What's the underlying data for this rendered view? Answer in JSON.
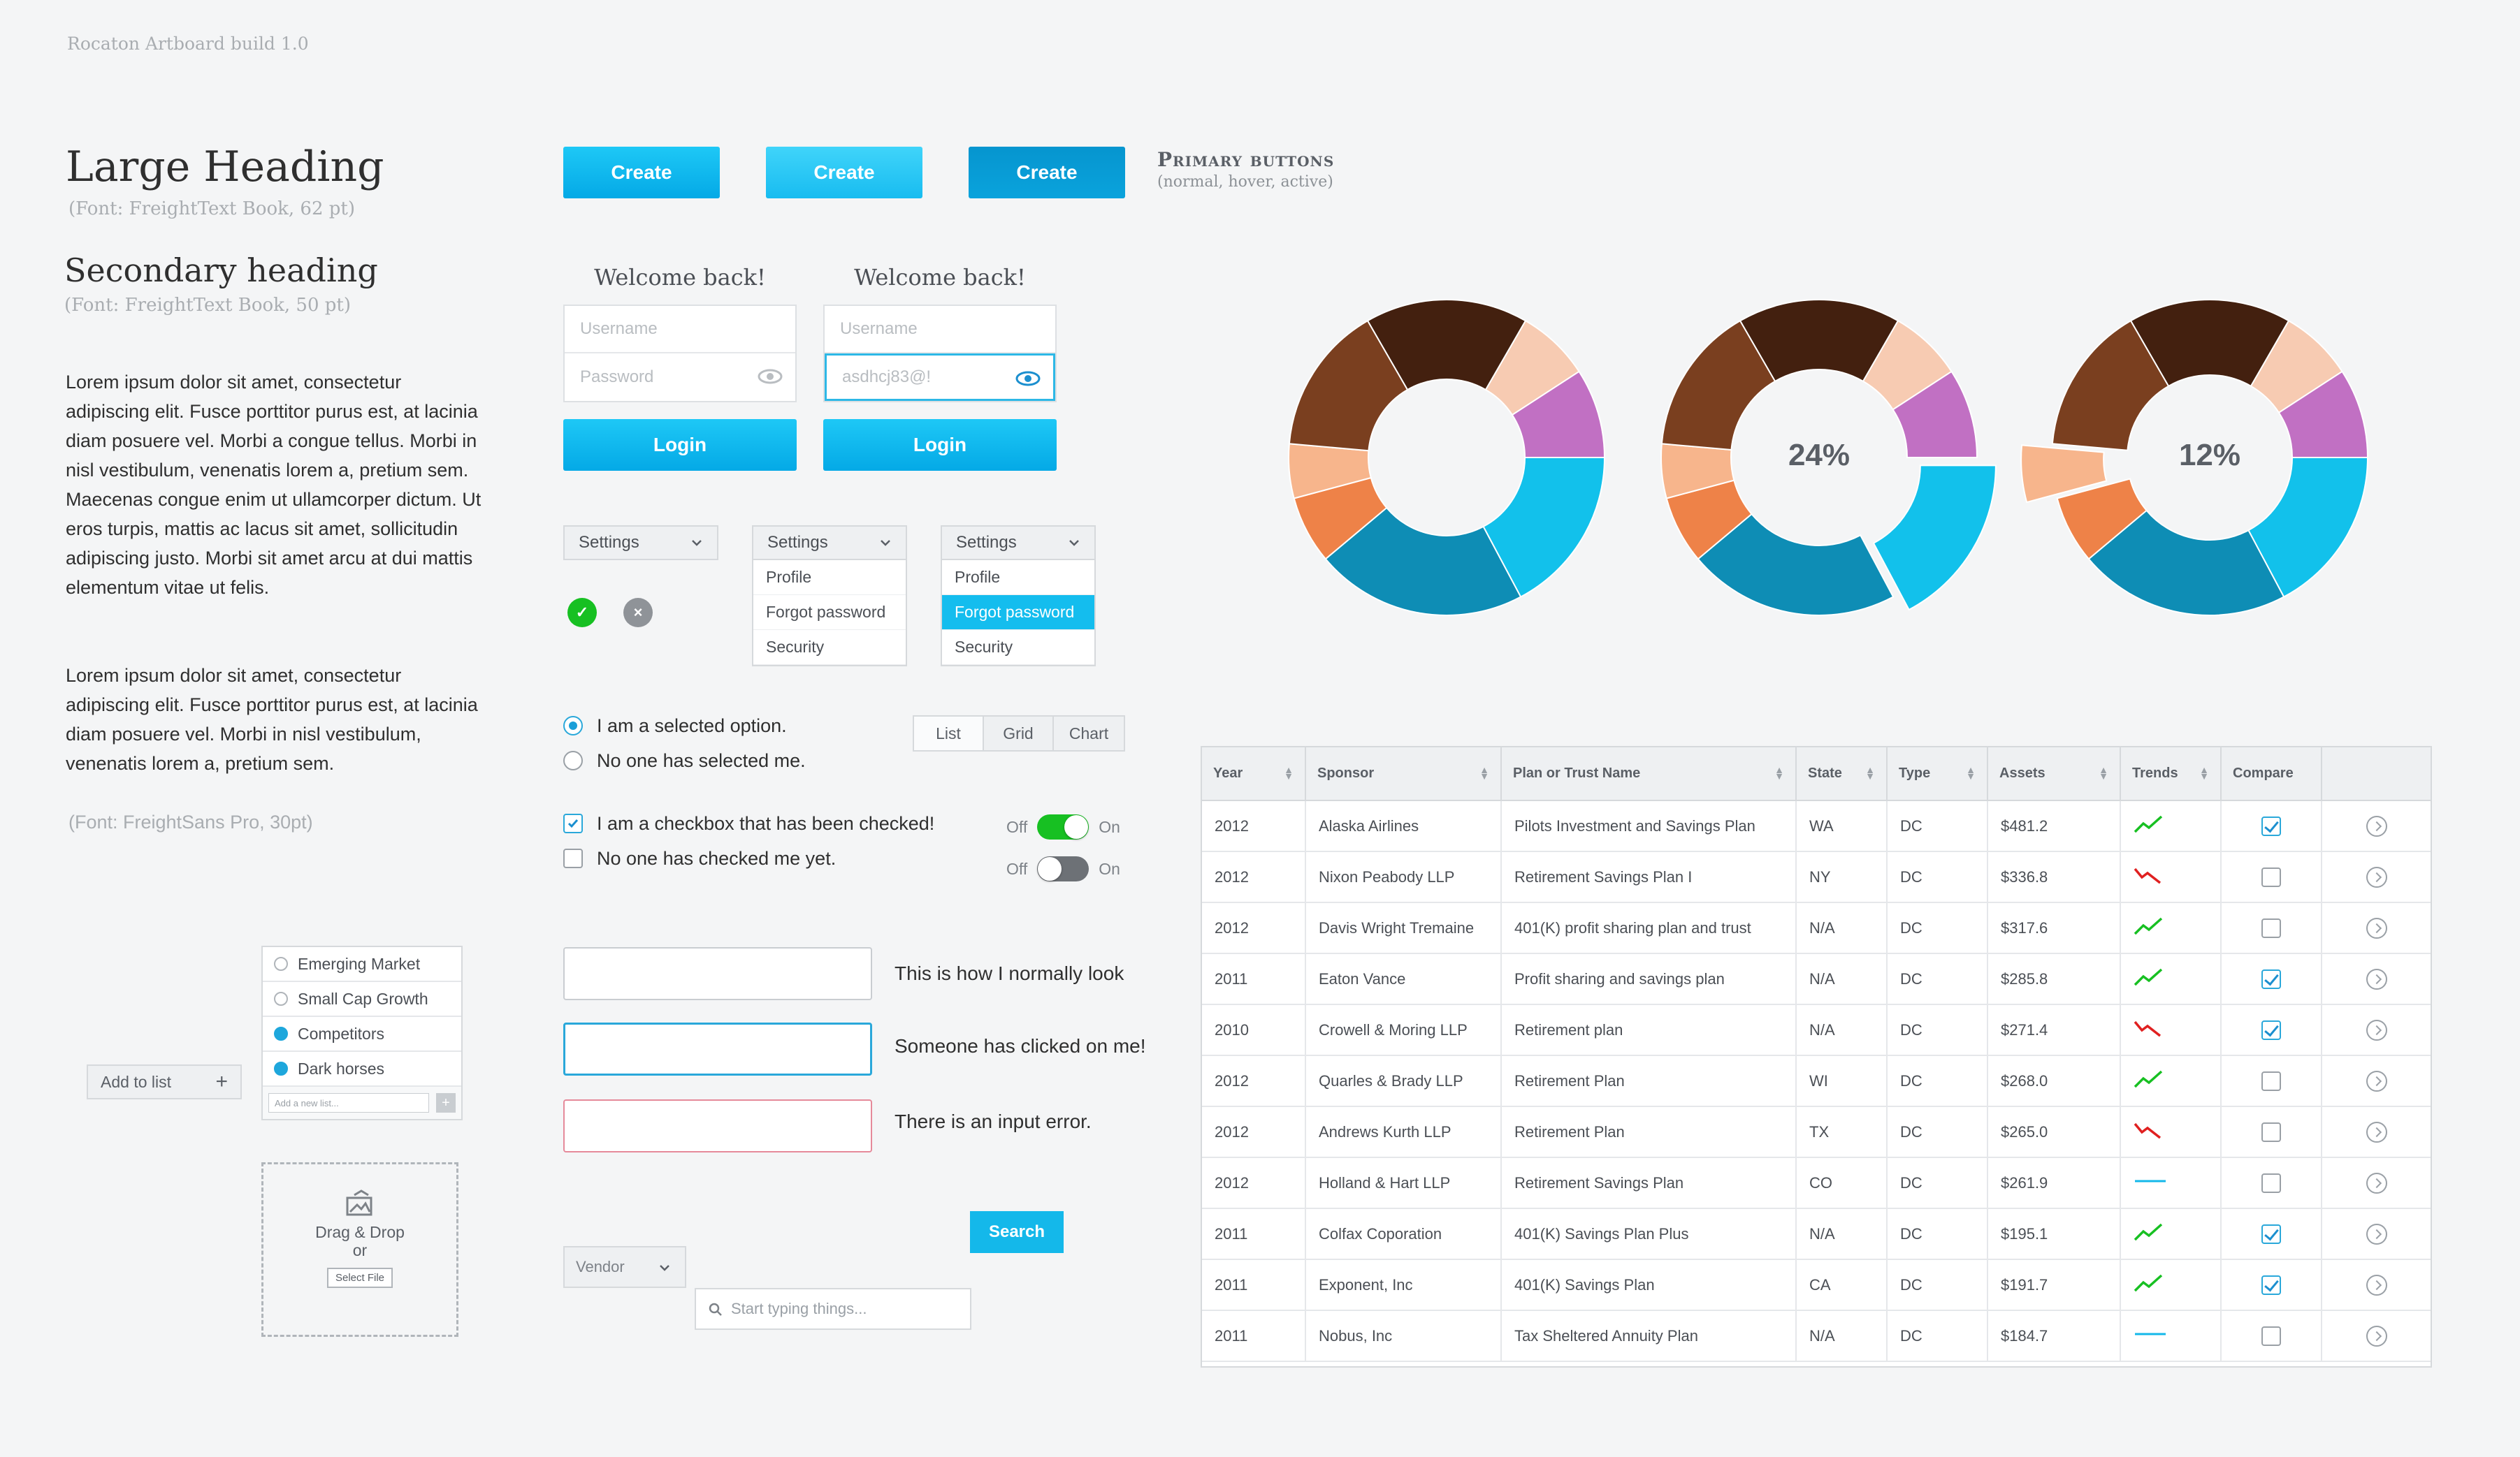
{
  "build_title": "Rocaton Artboard build 1.0",
  "typography": {
    "large_heading": "Large Heading",
    "large_heading_note": "(Font: FreightText Book, 62 pt)",
    "secondary_heading": "Secondary heading",
    "secondary_heading_note": "(Font: FreightText Book, 50 pt)",
    "paragraph1": "Lorem ipsum dolor sit amet, consectetur adipiscing elit. Fusce porttitor purus est, at lacinia diam posuere vel. Morbi a congue tellus. Morbi in nisl vestibulum, venenatis lorem a, pretium sem. Maecenas congue enim ut ullamcorper dictum. Ut eros turpis, mattis ac lacus sit amet, sollicitudin adipiscing justo. Morbi sit amet arcu at dui mattis elementum vitae ut felis.",
    "paragraph2": "Lorem ipsum dolor sit amet, consectetur adipiscing elit. Fusce porttitor purus est, at lacinia diam posuere vel. Morbi in nisl vestibulum, venenatis lorem a, pretium sem.",
    "sans_note": "(Font: FreightSans Pro, 30pt)"
  },
  "primary_buttons": {
    "labels": [
      "Create",
      "Create",
      "Create"
    ],
    "title": "Primary buttons",
    "subtitle": "(normal, hover, active)"
  },
  "login_forms": [
    {
      "welcome": "Welcome back!",
      "username_placeholder": "Username",
      "password_placeholder": "Password",
      "password_value": "",
      "button": "Login"
    },
    {
      "welcome": "Welcome back!",
      "username_placeholder": "Username",
      "password_placeholder": "Password",
      "password_value": "asdhcj83@!",
      "button": "Login"
    }
  ],
  "dropdowns": {
    "header": "Settings",
    "items": [
      "Profile",
      "Forgot password",
      "Security"
    ],
    "selected_index_third": 1
  },
  "status_icons": {
    "success": "✓",
    "error": "×"
  },
  "radios": [
    {
      "label": "I am a selected option.",
      "checked": true
    },
    {
      "label": "No one has selected me.",
      "checked": false
    }
  ],
  "checkboxes": [
    {
      "label": "I am a checkbox that has been checked!",
      "checked": true
    },
    {
      "label": "No one has checked me yet.",
      "checked": false
    }
  ],
  "segmented": [
    "List",
    "Grid",
    "Chart"
  ],
  "toggles": {
    "off": "Off",
    "on": "On",
    "states": [
      true,
      false
    ]
  },
  "inputs": [
    {
      "note": "This is how I normally look",
      "state": "normal"
    },
    {
      "note": "Someone has clicked on me!",
      "state": "focus"
    },
    {
      "note": "There is an input error.",
      "state": "error"
    }
  ],
  "search": {
    "vendor": "Vendor",
    "placeholder": "Start typing things...",
    "button": "Search"
  },
  "add_to_list": {
    "button": "Add to list",
    "items": [
      {
        "label": "Emerging Market",
        "checked": false
      },
      {
        "label": "Small Cap Growth",
        "checked": false
      },
      {
        "label": "Competitors",
        "checked": true
      },
      {
        "label": "Dark horses",
        "checked": true
      }
    ],
    "new_placeholder": "Add a new list..."
  },
  "dropzone": {
    "line1": "Drag & Drop",
    "line2": "or",
    "button": "Select File"
  },
  "donuts": [
    {
      "label": ""
    },
    {
      "label": "24%"
    },
    {
      "label": "12%"
    }
  ],
  "colors": {
    "primary": "#10B9EC",
    "dark_brown": "#43200F",
    "brown": "#7A3F1F",
    "peach": "#F7CBB2",
    "purple": "#C170C3",
    "cyan": "#12C1EB",
    "teal": "#0E8DB5",
    "orange": "#EE8248",
    "light_orange": "#F7B58C"
  },
  "table": {
    "headers": [
      "Year",
      "Sponsor",
      "Plan or Trust Name",
      "State",
      "Type",
      "Assets",
      "Trends",
      "Compare",
      ""
    ],
    "rows": [
      {
        "year": "2012",
        "sponsor": "Alaska Airlines",
        "plan": "Pilots Investment and Savings Plan",
        "state": "WA",
        "type": "DC",
        "assets": "$481.2",
        "trend": "up",
        "compare": true
      },
      {
        "year": "2012",
        "sponsor": "Nixon Peabody LLP",
        "plan": "Retirement Savings Plan I",
        "state": "NY",
        "type": "DC",
        "assets": "$336.8",
        "trend": "down",
        "compare": false
      },
      {
        "year": "2012",
        "sponsor": "Davis Wright Tremaine",
        "plan": "401(K) profit sharing plan and trust",
        "state": "N/A",
        "type": "DC",
        "assets": "$317.6",
        "trend": "up",
        "compare": false
      },
      {
        "year": "2011",
        "sponsor": "Eaton Vance",
        "plan": "Profit sharing and savings plan",
        "state": "N/A",
        "type": "DC",
        "assets": "$285.8",
        "trend": "up",
        "compare": true
      },
      {
        "year": "2010",
        "sponsor": "Crowell & Moring LLP",
        "plan": "Retirement plan",
        "state": "N/A",
        "type": "DC",
        "assets": "$271.4",
        "trend": "down",
        "compare": true
      },
      {
        "year": "2012",
        "sponsor": "Quarles & Brady LLP",
        "plan": "Retirement Plan",
        "state": "WI",
        "type": "DC",
        "assets": "$268.0",
        "trend": "up",
        "compare": false
      },
      {
        "year": "2012",
        "sponsor": "Andrews Kurth LLP",
        "plan": "Retirement Plan",
        "state": "TX",
        "type": "DC",
        "assets": "$265.0",
        "trend": "down",
        "compare": false
      },
      {
        "year": "2012",
        "sponsor": "Holland & Hart LLP",
        "plan": "Retirement Savings Plan",
        "state": "CO",
        "type": "DC",
        "assets": "$261.9",
        "trend": "flat",
        "compare": false
      },
      {
        "year": "2011",
        "sponsor": "Colfax Coporation",
        "plan": "401(K) Savings Plan Plus",
        "state": "N/A",
        "type": "DC",
        "assets": "$195.1",
        "trend": "up",
        "compare": true
      },
      {
        "year": "2011",
        "sponsor": "Exponent, Inc",
        "plan": "401(K) Savings Plan",
        "state": "CA",
        "type": "DC",
        "assets": "$191.7",
        "trend": "up",
        "compare": true
      },
      {
        "year": "2011",
        "sponsor": "Nobus, Inc",
        "plan": "Tax Sheltered Annuity Plan",
        "state": "N/A",
        "type": "DC",
        "assets": "$184.7",
        "trend": "flat",
        "compare": false
      }
    ]
  }
}
